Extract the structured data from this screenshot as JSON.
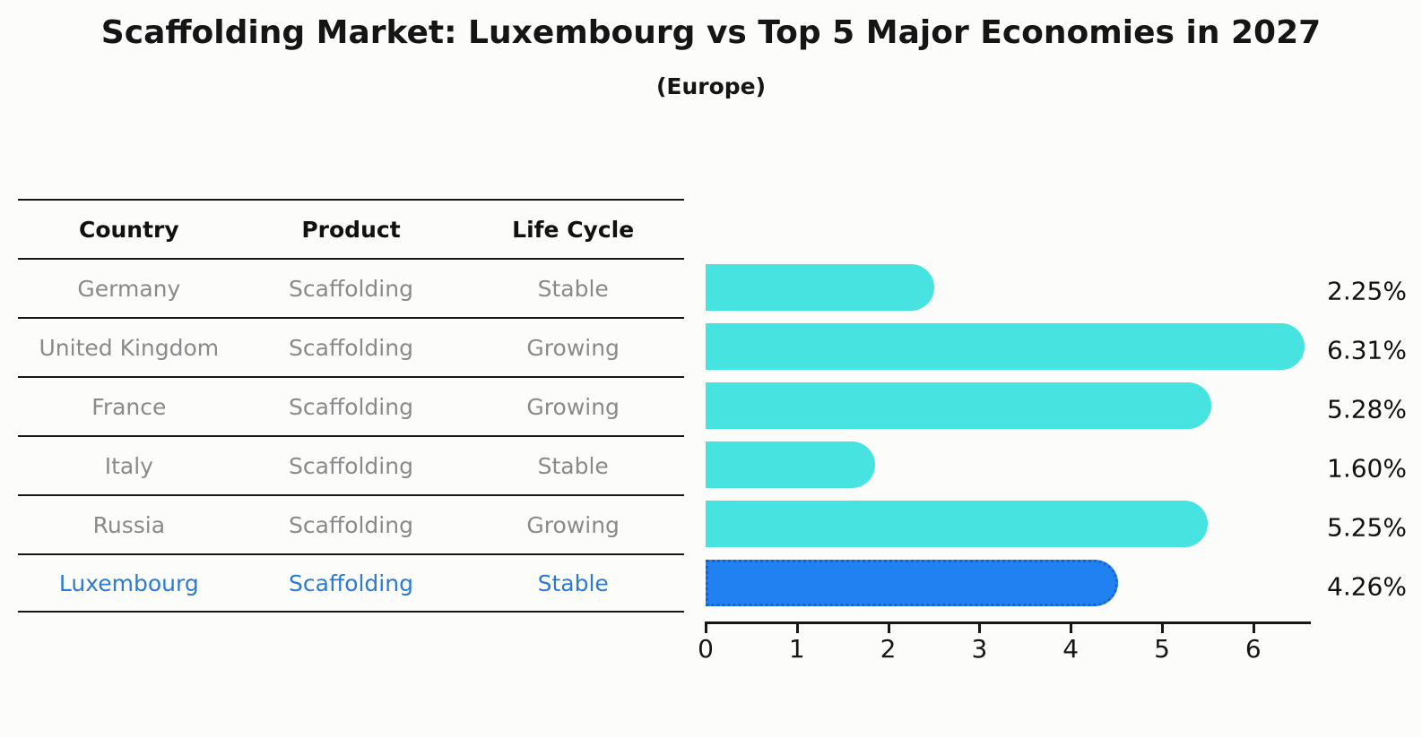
{
  "title": "Scaffolding Market: Luxembourg vs Top 5 Major Economies in 2027",
  "subtitle": "(Europe)",
  "table": {
    "headers": [
      "Country",
      "Product",
      "Life Cycle"
    ],
    "rows": [
      {
        "country": "Germany",
        "product": "Scaffolding",
        "life_cycle": "Stable"
      },
      {
        "country": "United Kingdom",
        "product": "Scaffolding",
        "life_cycle": "Growing"
      },
      {
        "country": "France",
        "product": "Scaffolding",
        "life_cycle": "Growing"
      },
      {
        "country": "Italy",
        "product": "Scaffolding",
        "life_cycle": "Stable"
      },
      {
        "country": "Russia",
        "product": "Scaffolding",
        "life_cycle": "Growing"
      },
      {
        "country": "Luxembourg",
        "product": "Scaffolding",
        "life_cycle": "Stable"
      }
    ]
  },
  "chart_data": {
    "type": "bar",
    "orientation": "horizontal",
    "title": "Scaffolding Market: Luxembourg vs Top 5 Major Economies in 2027 (Europe)",
    "categories": [
      "Germany",
      "United Kingdom",
      "France",
      "Italy",
      "Russia",
      "Luxembourg"
    ],
    "values": [
      2.25,
      6.31,
      5.28,
      1.6,
      5.25,
      4.26
    ],
    "labels": [
      "2.25%",
      "6.31%",
      "5.28%",
      "1.60%",
      "5.25%",
      "4.26%"
    ],
    "xlim": [
      0,
      6.63
    ],
    "x_ticks": [
      0,
      1,
      2,
      3,
      4,
      5,
      6
    ],
    "grid": false,
    "legend": "none",
    "bar_color": "#46e3e0",
    "highlight_index": 5,
    "highlight_color": "#2181f1",
    "highlight_border_color": "#1563d2",
    "highlight_text_color": "#2b7bd3"
  }
}
